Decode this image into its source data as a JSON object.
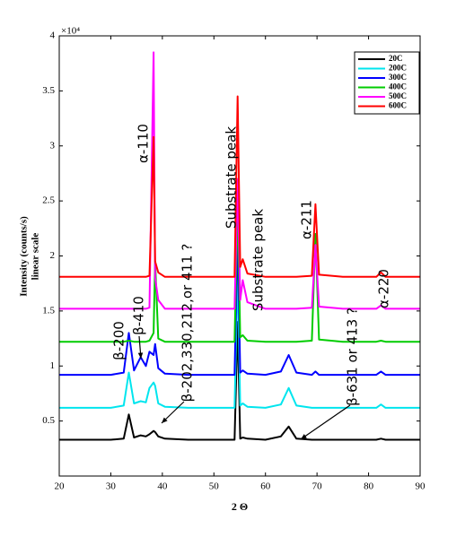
{
  "chart_data": {
    "type": "line",
    "xlabel": "2 Θ",
    "ylabel": [
      "Intensity (counts/s)",
      "linear scale"
    ],
    "y_multiplier": "×10⁴",
    "x": [
      20,
      25,
      30,
      32.5,
      33.5,
      34.5,
      35.8,
      36.8,
      37.5,
      38.3,
      38.6,
      39.2,
      40.5,
      45,
      50,
      54,
      54.6,
      55.1,
      55.6,
      56.5,
      60,
      63,
      64.5,
      66,
      69,
      69.7,
      70.4,
      75,
      81.5,
      82.4,
      83.3,
      90
    ],
    "series": [
      {
        "name": "20C",
        "color": "#000000",
        "values": [
          0.33,
          0.33,
          0.33,
          0.34,
          0.56,
          0.35,
          0.37,
          0.36,
          0.38,
          0.41,
          0.4,
          0.36,
          0.34,
          0.33,
          0.33,
          0.33,
          1.4,
          0.34,
          0.35,
          0.34,
          0.33,
          0.36,
          0.45,
          0.34,
          0.33,
          0.33,
          0.33,
          0.33,
          0.33,
          0.34,
          0.33,
          0.33
        ]
      },
      {
        "name": "200C",
        "color": "#00e5ee",
        "values": [
          0.62,
          0.62,
          0.62,
          0.64,
          0.94,
          0.66,
          0.68,
          0.67,
          0.8,
          0.85,
          0.82,
          0.66,
          0.63,
          0.62,
          0.62,
          0.62,
          1.9,
          0.64,
          0.66,
          0.63,
          0.62,
          0.65,
          0.8,
          0.64,
          0.62,
          0.62,
          0.62,
          0.62,
          0.62,
          0.65,
          0.62,
          0.62
        ]
      },
      {
        "name": "300C",
        "color": "#0000ff",
        "values": [
          0.92,
          0.92,
          0.92,
          0.94,
          1.3,
          0.96,
          1.08,
          1.0,
          1.13,
          1.1,
          1.2,
          0.98,
          0.93,
          0.92,
          0.92,
          0.92,
          2.2,
          0.94,
          0.96,
          0.93,
          0.92,
          0.95,
          1.1,
          0.94,
          0.92,
          0.95,
          0.92,
          0.92,
          0.92,
          0.95,
          0.92,
          0.92
        ]
      },
      {
        "name": "400C",
        "color": "#00cc00",
        "values": [
          1.22,
          1.22,
          1.22,
          1.22,
          1.23,
          1.22,
          1.22,
          1.22,
          1.23,
          1.3,
          1.95,
          1.25,
          1.22,
          1.22,
          1.22,
          1.22,
          2.5,
          1.26,
          1.28,
          1.23,
          1.22,
          1.22,
          1.22,
          1.22,
          1.23,
          2.2,
          1.24,
          1.22,
          1.22,
          1.23,
          1.22,
          1.22
        ]
      },
      {
        "name": "500C",
        "color": "#ff00ff",
        "values": [
          1.52,
          1.52,
          1.52,
          1.52,
          1.52,
          1.52,
          1.52,
          1.52,
          1.53,
          3.85,
          1.8,
          1.6,
          1.52,
          1.52,
          1.52,
          1.52,
          2.7,
          1.6,
          1.78,
          1.58,
          1.52,
          1.52,
          1.52,
          1.52,
          1.53,
          2.1,
          1.54,
          1.52,
          1.52,
          1.55,
          1.52,
          1.52
        ]
      },
      {
        "name": "600C",
        "color": "#ff0000",
        "values": [
          1.81,
          1.81,
          1.81,
          1.81,
          1.81,
          1.81,
          1.81,
          1.81,
          1.82,
          3.08,
          1.95,
          1.85,
          1.81,
          1.81,
          1.81,
          1.81,
          3.45,
          1.9,
          1.97,
          1.84,
          1.81,
          1.81,
          1.81,
          1.81,
          1.82,
          2.47,
          1.83,
          1.81,
          1.81,
          1.85,
          1.81,
          1.81
        ]
      }
    ],
    "xlim": [
      20,
      90
    ],
    "ylim": [
      0,
      4
    ],
    "xticks": [
      20,
      30,
      40,
      50,
      60,
      70,
      80,
      90
    ],
    "yticks": [
      0.5,
      1,
      1.5,
      2,
      2.5,
      3,
      3.5,
      4
    ],
    "legend": "upper right",
    "annotations": [
      "α-110",
      "Substrate peak",
      "Substrate peak",
      "α-211",
      "α-220",
      "β-200",
      "β-410",
      "β-202,330,212,or 411 ?",
      "β-631 or 413 ?"
    ]
  }
}
